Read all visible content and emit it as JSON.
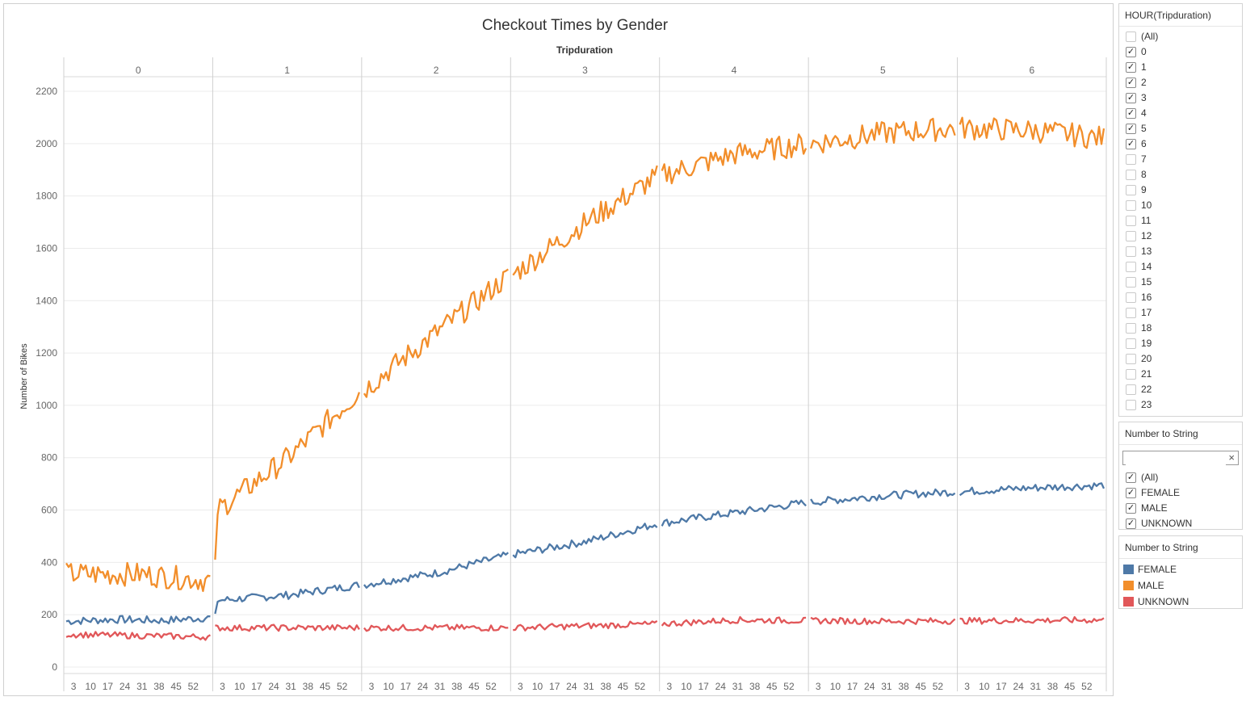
{
  "chart_data": {
    "type": "line",
    "title": "Checkout Times by Gender",
    "column_header": "Tripduration",
    "panes": [
      "0",
      "1",
      "2",
      "3",
      "4",
      "5",
      "6"
    ],
    "minute_ticks": [
      3,
      10,
      17,
      24,
      31,
      38,
      45,
      52
    ],
    "minute_tick_labels": [
      "3",
      "10",
      "17",
      "24",
      "31",
      "38",
      "45",
      "52"
    ],
    "x_range_per_pane": [
      0,
      59
    ],
    "ylabel": "Number of Bikes",
    "ylim": [
      0,
      2200
    ],
    "y_ticks": [
      0,
      200,
      400,
      600,
      800,
      1000,
      1200,
      1400,
      1600,
      1800,
      2000,
      2200
    ],
    "y_tick_labels": [
      "0",
      "200",
      "400",
      "600",
      "800",
      "1000",
      "1200",
      "1400",
      "1600",
      "1800",
      "2000",
      "2200"
    ],
    "grid": true,
    "series": [
      {
        "name": "FEMALE",
        "color": "#4e79a7",
        "anchors": [
          [
            0,
            175
          ],
          [
            20,
            182
          ],
          [
            40,
            178
          ],
          [
            60,
            190
          ],
          [
            61,
            255
          ],
          [
            90,
            275
          ],
          [
            120,
            315
          ],
          [
            150,
            360
          ],
          [
            180,
            430
          ],
          [
            210,
            480
          ],
          [
            240,
            550
          ],
          [
            270,
            590
          ],
          [
            300,
            630
          ],
          [
            330,
            655
          ],
          [
            360,
            670
          ],
          [
            390,
            685
          ],
          [
            420,
            695
          ],
          [
            450,
            690
          ],
          [
            480,
            685
          ],
          [
            510,
            665
          ],
          [
            539,
            660
          ]
        ],
        "noise": 15
      },
      {
        "name": "MALE",
        "color": "#f28e2b",
        "anchors": [
          [
            0,
            355
          ],
          [
            30,
            355
          ],
          [
            59,
            330
          ],
          [
            60,
            370
          ],
          [
            61,
            600
          ],
          [
            90,
            800
          ],
          [
            120,
            1060
          ],
          [
            150,
            1280
          ],
          [
            180,
            1500
          ],
          [
            210,
            1700
          ],
          [
            240,
            1880
          ],
          [
            270,
            1960
          ],
          [
            300,
            2000
          ],
          [
            330,
            2040
          ],
          [
            360,
            2060
          ],
          [
            390,
            2050
          ],
          [
            420,
            2020
          ],
          [
            450,
            2000
          ],
          [
            480,
            1960
          ],
          [
            510,
            1930
          ],
          [
            539,
            1830
          ]
        ],
        "noise": 45
      },
      {
        "name": "UNKNOWN",
        "color": "#e15759",
        "anchors": [
          [
            0,
            125
          ],
          [
            30,
            120
          ],
          [
            59,
            115
          ],
          [
            60,
            150
          ],
          [
            120,
            150
          ],
          [
            180,
            150
          ],
          [
            240,
            165
          ],
          [
            270,
            180
          ],
          [
            330,
            175
          ],
          [
            420,
            180
          ],
          [
            480,
            180
          ],
          [
            539,
            165
          ]
        ],
        "noise": 12
      }
    ]
  },
  "filter_hour": {
    "title": "HOUR(Tripduration)",
    "items": [
      {
        "label": "(All)",
        "checked": false
      },
      {
        "label": "0",
        "checked": true
      },
      {
        "label": "1",
        "checked": true
      },
      {
        "label": "2",
        "checked": true
      },
      {
        "label": "3",
        "checked": true
      },
      {
        "label": "4",
        "checked": true
      },
      {
        "label": "5",
        "checked": true
      },
      {
        "label": "6",
        "checked": true
      },
      {
        "label": "7",
        "checked": false
      },
      {
        "label": "8",
        "checked": false
      },
      {
        "label": "9",
        "checked": false
      },
      {
        "label": "10",
        "checked": false
      },
      {
        "label": "11",
        "checked": false
      },
      {
        "label": "12",
        "checked": false
      },
      {
        "label": "13",
        "checked": false
      },
      {
        "label": "14",
        "checked": false
      },
      {
        "label": "15",
        "checked": false
      },
      {
        "label": "16",
        "checked": false
      },
      {
        "label": "17",
        "checked": false
      },
      {
        "label": "18",
        "checked": false
      },
      {
        "label": "19",
        "checked": false
      },
      {
        "label": "20",
        "checked": false
      },
      {
        "label": "21",
        "checked": false
      },
      {
        "label": "22",
        "checked": false
      },
      {
        "label": "23",
        "checked": false
      }
    ]
  },
  "filter_gender": {
    "title": "Number to String",
    "search_value": "",
    "clear_symbol": "×",
    "items": [
      {
        "label": "(All)",
        "checked": true
      },
      {
        "label": "FEMALE",
        "checked": true
      },
      {
        "label": "MALE",
        "checked": true
      },
      {
        "label": "UNKNOWN",
        "checked": true
      }
    ]
  },
  "legend": {
    "title": "Number to String",
    "items": [
      {
        "label": "FEMALE",
        "color": "#4e79a7"
      },
      {
        "label": "MALE",
        "color": "#f28e2b"
      },
      {
        "label": "UNKNOWN",
        "color": "#e15759"
      }
    ]
  }
}
